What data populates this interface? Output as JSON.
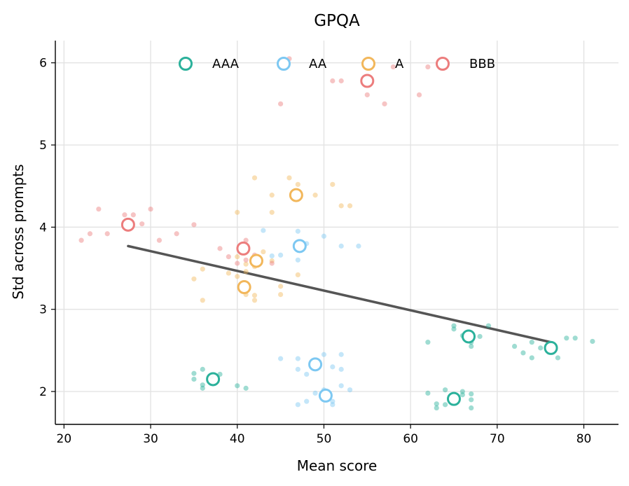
{
  "chart_data": {
    "type": "scatter",
    "title": "GPQA",
    "xlabel": "Mean score",
    "ylabel": "Std across prompts",
    "xlim": [
      19,
      84
    ],
    "ylim": [
      1.6,
      6.27
    ],
    "xticks": [
      20,
      30,
      40,
      50,
      60,
      70,
      80
    ],
    "yticks": [
      2,
      3,
      4,
      5,
      6
    ],
    "grid": true,
    "legend": {
      "placement": "top-center",
      "columns": 4
    },
    "series": [
      {
        "name": "AAA",
        "color": "#2bb19b",
        "summary_points": [
          [
            37.2,
            2.15
          ],
          [
            65.0,
            1.91
          ],
          [
            66.7,
            2.67
          ],
          [
            76.2,
            2.53
          ]
        ],
        "scatter_points": [
          [
            35,
            2.22
          ],
          [
            35,
            2.15
          ],
          [
            36,
            2.27
          ],
          [
            36,
            2.08
          ],
          [
            36,
            2.04
          ],
          [
            37,
            2.18
          ],
          [
            38,
            2.21
          ],
          [
            40,
            2.07
          ],
          [
            41,
            2.04
          ],
          [
            62,
            1.98
          ],
          [
            63,
            1.85
          ],
          [
            63,
            1.8
          ],
          [
            64,
            1.84
          ],
          [
            64,
            2.02
          ],
          [
            66,
            2.0
          ],
          [
            66,
            1.96
          ],
          [
            67,
            1.97
          ],
          [
            67,
            1.9
          ],
          [
            67,
            1.8
          ],
          [
            62,
            2.6
          ],
          [
            65,
            2.8
          ],
          [
            65,
            2.76
          ],
          [
            66,
            2.68
          ],
          [
            67,
            2.6
          ],
          [
            67,
            2.55
          ],
          [
            68,
            2.67
          ],
          [
            69,
            2.8
          ],
          [
            72,
            2.55
          ],
          [
            73,
            2.47
          ],
          [
            74,
            2.41
          ],
          [
            74,
            2.6
          ],
          [
            75,
            2.53
          ],
          [
            77,
            2.41
          ],
          [
            78,
            2.65
          ],
          [
            79,
            2.65
          ],
          [
            81,
            2.61
          ]
        ]
      },
      {
        "name": "AA",
        "color": "#7dc8f2",
        "summary_points": [
          [
            47.2,
            3.77
          ],
          [
            49.0,
            2.33
          ],
          [
            50.2,
            1.95
          ]
        ],
        "scatter_points": [
          [
            43,
            3.96
          ],
          [
            44,
            3.65
          ],
          [
            45,
            3.66
          ],
          [
            47,
            3.95
          ],
          [
            47,
            3.6
          ],
          [
            48,
            3.8
          ],
          [
            50,
            3.89
          ],
          [
            52,
            3.77
          ],
          [
            54,
            3.77
          ],
          [
            45,
            2.4
          ],
          [
            47,
            2.4
          ],
          [
            47,
            2.27
          ],
          [
            48,
            2.21
          ],
          [
            50,
            2.45
          ],
          [
            51,
            2.3
          ],
          [
            52,
            2.27
          ],
          [
            52,
            2.45
          ],
          [
            47,
            1.84
          ],
          [
            48,
            1.88
          ],
          [
            49,
            1.98
          ],
          [
            50,
            2.02
          ],
          [
            51,
            1.88
          ],
          [
            51,
            1.84
          ],
          [
            52,
            2.07
          ],
          [
            53,
            2.02
          ]
        ]
      },
      {
        "name": "A",
        "color": "#f2b75b",
        "summary_points": [
          [
            40.8,
            3.27
          ],
          [
            42.2,
            3.59
          ],
          [
            46.8,
            4.39
          ]
        ],
        "scatter_points": [
          [
            35,
            3.37
          ],
          [
            36,
            3.49
          ],
          [
            36,
            3.11
          ],
          [
            39,
            3.44
          ],
          [
            40,
            3.4
          ],
          [
            41,
            3.46
          ],
          [
            41,
            3.18
          ],
          [
            42,
            3.11
          ],
          [
            42,
            3.17
          ],
          [
            45,
            3.28
          ],
          [
            45,
            3.18
          ],
          [
            47,
            3.42
          ],
          [
            40,
            3.64
          ],
          [
            41,
            3.55
          ],
          [
            42,
            3.52
          ],
          [
            43,
            3.7
          ],
          [
            44,
            3.59
          ],
          [
            40,
            4.18
          ],
          [
            42,
            4.6
          ],
          [
            44,
            4.39
          ],
          [
            44,
            4.18
          ],
          [
            46,
            4.6
          ],
          [
            47,
            4.52
          ],
          [
            49,
            4.39
          ],
          [
            51,
            4.52
          ],
          [
            52,
            4.26
          ],
          [
            53,
            4.26
          ]
        ]
      },
      {
        "name": "BBB",
        "color": "#ec7d7d",
        "summary_points": [
          [
            27.4,
            4.03
          ],
          [
            40.7,
            3.74
          ],
          [
            55.0,
            5.78
          ]
        ],
        "scatter_points": [
          [
            22,
            3.84
          ],
          [
            23,
            3.92
          ],
          [
            24,
            4.22
          ],
          [
            25,
            3.92
          ],
          [
            27,
            4.15
          ],
          [
            28,
            4.15
          ],
          [
            29,
            4.04
          ],
          [
            30,
            4.22
          ],
          [
            31,
            3.84
          ],
          [
            33,
            3.92
          ],
          [
            35,
            4.03
          ],
          [
            38,
            3.74
          ],
          [
            39,
            3.64
          ],
          [
            40,
            3.56
          ],
          [
            41,
            3.84
          ],
          [
            41,
            3.6
          ],
          [
            42,
            3.66
          ],
          [
            44,
            3.56
          ],
          [
            45,
            5.5
          ],
          [
            51,
            5.78
          ],
          [
            52,
            5.78
          ],
          [
            55,
            5.61
          ],
          [
            57,
            5.5
          ],
          [
            58,
            5.95
          ],
          [
            61,
            5.61
          ],
          [
            62,
            5.95
          ],
          [
            46,
            6.05
          ]
        ]
      }
    ],
    "trend_line": {
      "color": "#555555",
      "points": [
        [
          27.4,
          3.77
        ],
        [
          76.2,
          2.6
        ]
      ]
    }
  }
}
